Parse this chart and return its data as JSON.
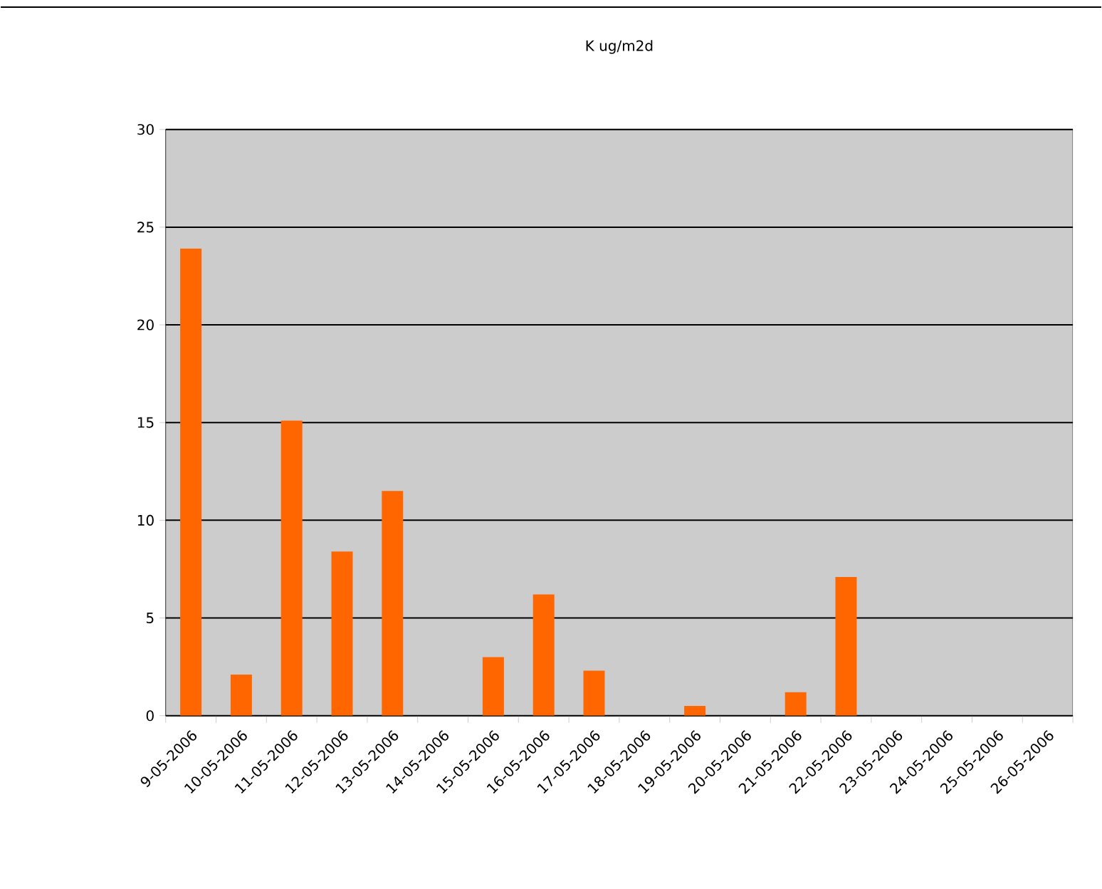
{
  "chart_data": {
    "type": "bar",
    "title": "K ug/m2d",
    "categories": [
      "9-05-2006",
      "10-05-2006",
      "11-05-2006",
      "12-05-2006",
      "13-05-2006",
      "14-05-2006",
      "15-05-2006",
      "16-05-2006",
      "17-05-2006",
      "18-05-2006",
      "19-05-2006",
      "20-05-2006",
      "21-05-2006",
      "22-05-2006",
      "23-05-2006",
      "24-05-2006",
      "25-05-2006",
      "26-05-2006"
    ],
    "values": [
      23.9,
      2.1,
      15.1,
      8.4,
      11.5,
      null,
      3.0,
      6.2,
      2.3,
      null,
      0.5,
      null,
      1.2,
      7.1,
      null,
      null,
      null,
      null
    ],
    "color": "#ff6600",
    "ylim": [
      0,
      30
    ],
    "yticks": [
      0,
      5,
      10,
      15,
      20,
      25,
      30
    ],
    "grid": "y"
  }
}
